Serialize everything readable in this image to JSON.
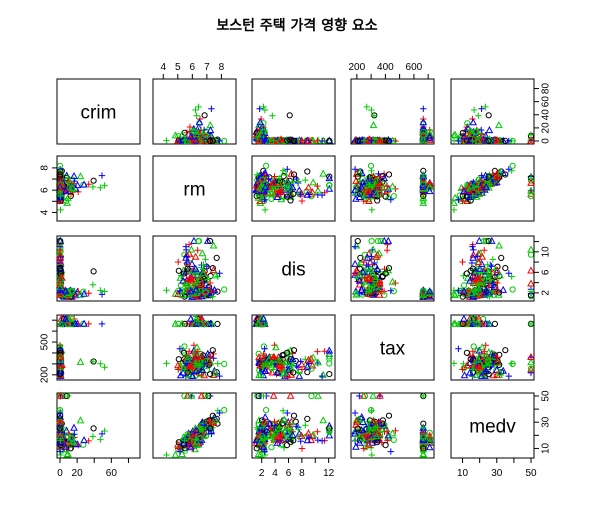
{
  "chart_data": {
    "type": "scatter",
    "title": "보스턴 주택 가격 영향 요소",
    "matrix": "pairs",
    "variables": [
      {
        "name": "crim",
        "range": [
          0,
          90
        ],
        "ticks": [
          0,
          20,
          40,
          60,
          80
        ],
        "ticks_shown_bottom": [
          "0",
          "20",
          "60"
        ],
        "ticks_shown_right": [
          "0",
          "20",
          "40",
          "60",
          "80"
        ]
      },
      {
        "name": "rm",
        "range": [
          3.5,
          8.8
        ],
        "ticks": [
          4,
          5,
          6,
          7,
          8
        ],
        "ticks_shown_top": [
          "4",
          "5",
          "6",
          "7",
          "8"
        ],
        "ticks_shown_left": [
          "4",
          "6",
          "8"
        ]
      },
      {
        "name": "dis",
        "range": [
          1,
          12.5
        ],
        "ticks": [
          2,
          4,
          6,
          8,
          10,
          12
        ],
        "ticks_shown_bottom": [
          "2",
          "4",
          "6",
          "8",
          "12"
        ],
        "ticks_shown_right": [
          "2",
          "6",
          "10"
        ]
      },
      {
        "name": "tax",
        "range": [
          180,
          720
        ],
        "ticks": [
          200,
          300,
          400,
          500,
          600,
          700
        ],
        "ticks_shown_top": [
          "200",
          "400",
          "600"
        ],
        "ticks_shown_left": [
          "200",
          "500"
        ]
      },
      {
        "name": "medv",
        "range": [
          5,
          50
        ],
        "ticks": [
          10,
          20,
          30,
          40,
          50
        ],
        "ticks_shown_bottom": [
          "10",
          "30",
          "50"
        ],
        "ticks_shown_right": [
          "10",
          "30",
          "50"
        ]
      }
    ],
    "groups": [
      {
        "marker": "circle",
        "color": "#000000"
      },
      {
        "marker": "triangle",
        "color": "#ff0000"
      },
      {
        "marker": "plus",
        "color": "#00cc00"
      },
      {
        "marker": "triangle",
        "color": "#0000ff"
      },
      {
        "marker": "circle",
        "color": "#00cc00"
      },
      {
        "marker": "plus",
        "color": "#ff0000"
      },
      {
        "marker": "triangle",
        "color": "#00cc00"
      },
      {
        "marker": "plus",
        "color": "#0000ff"
      }
    ],
    "grid": false,
    "legend": "none",
    "point_count": 220
  }
}
